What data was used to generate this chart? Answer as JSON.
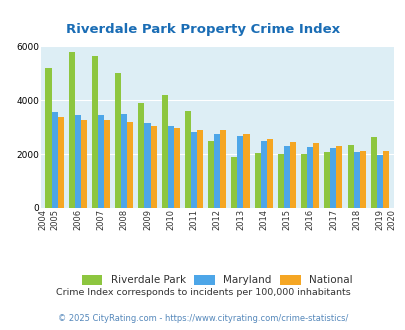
{
  "title": "Riverdale Park Property Crime Index",
  "years": [
    2004,
    2005,
    2006,
    2007,
    2008,
    2009,
    2010,
    2011,
    2012,
    2013,
    2014,
    2015,
    2016,
    2017,
    2018,
    2019,
    2020
  ],
  "riverdale_park": [
    null,
    5200,
    5800,
    5650,
    5000,
    3900,
    4200,
    3600,
    2500,
    1875,
    2050,
    2000,
    2000,
    2075,
    2325,
    2625,
    null
  ],
  "maryland": [
    null,
    3550,
    3450,
    3450,
    3500,
    3150,
    3050,
    2800,
    2725,
    2650,
    2475,
    2300,
    2250,
    2225,
    2075,
    1975,
    null
  ],
  "national": [
    null,
    3375,
    3275,
    3275,
    3175,
    3050,
    2950,
    2900,
    2875,
    2750,
    2550,
    2450,
    2400,
    2300,
    2125,
    2100,
    null
  ],
  "bar_colors": {
    "riverdale_park": "#8dc63f",
    "maryland": "#4da6e8",
    "national": "#f5a623"
  },
  "ylim": [
    0,
    6000
  ],
  "yticks": [
    0,
    2000,
    4000,
    6000
  ],
  "plot_bg": "#ddeef5",
  "legend_labels": [
    "Riverdale Park",
    "Maryland",
    "National"
  ],
  "footnote1": "Crime Index corresponds to incidents per 100,000 inhabitants",
  "footnote2": "© 2025 CityRating.com - https://www.cityrating.com/crime-statistics/",
  "title_color": "#1a6db5",
  "footnote1_color": "#333333",
  "footnote2_color": "#5588bb",
  "grid_color": "#ffffff"
}
